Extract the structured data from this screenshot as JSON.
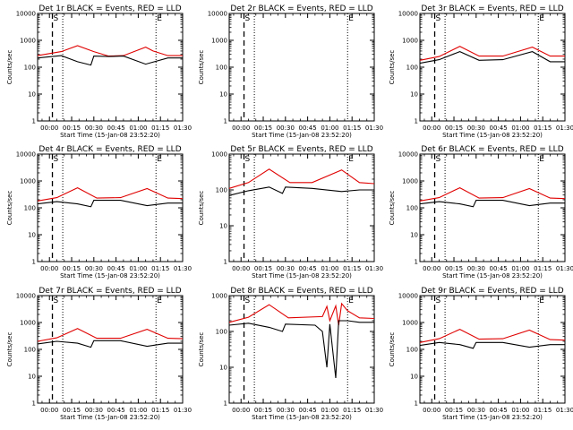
{
  "colors": {
    "events": "#000000",
    "lld": "#e00000",
    "background": "#ffffff"
  },
  "chart_data": [
    {
      "type": "line",
      "title": "Det 1r BLACK = Events, RED = LLD",
      "xlabel": "Start Time (15-Jan-08 23:52:20)",
      "ylabel": "Counts/sec",
      "y_scale": "log",
      "ylim": [
        1,
        10000
      ],
      "x_ticks": [
        "00:00",
        "00:15",
        "00:30",
        "00:45",
        "01:00",
        "01:15",
        "01:30"
      ],
      "y_ticks": [
        "1",
        "10",
        "100",
        "1000",
        "10000"
      ],
      "markers": [
        {
          "label": "S",
          "style": "dashed",
          "x": "00:02"
        },
        {
          "label": "",
          "style": "dotted",
          "x": "00:09"
        },
        {
          "label": "E",
          "style": "dotted",
          "x": "01:12"
        }
      ],
      "series": [
        {
          "color": "red",
          "points": [
            [
              "23:52",
              270
            ],
            [
              "00:08",
              380
            ],
            [
              "00:19",
              630
            ],
            [
              "00:30",
              380
            ],
            [
              "00:40",
              260
            ],
            [
              "00:50",
              270
            ],
            [
              "01:05",
              560
            ],
            [
              "01:10",
              400
            ],
            [
              "01:20",
              270
            ],
            [
              "01:30",
              270
            ]
          ]
        },
        {
          "color": "black",
          "points": [
            [
              "23:52",
              220
            ],
            [
              "00:08",
              270
            ],
            [
              "00:19",
              160
            ],
            [
              "00:28",
              120
            ],
            [
              "00:30",
              260
            ],
            [
              "00:40",
              250
            ],
            [
              "00:50",
              260
            ],
            [
              "01:05",
              130
            ],
            [
              "01:20",
              220
            ],
            [
              "01:30",
              220
            ]
          ]
        }
      ]
    },
    {
      "type": "line",
      "title": "Det 2r BLACK = Events, RED = LLD",
      "xlabel": "Start Time (15-Jan-08 23:52:20)",
      "ylabel": "Counts/sec",
      "y_scale": "log",
      "ylim": [
        1,
        10000
      ],
      "x_ticks": [
        "00:00",
        "00:15",
        "00:30",
        "00:45",
        "01:00",
        "01:15",
        "01:30"
      ],
      "y_ticks": [
        "1",
        "10",
        "100",
        "1000",
        "10000"
      ],
      "markers": [
        {
          "label": "S",
          "style": "dashed",
          "x": "00:02"
        },
        {
          "label": "",
          "style": "dotted",
          "x": "00:09"
        },
        {
          "label": "E",
          "style": "dotted",
          "x": "01:12"
        }
      ],
      "series": []
    },
    {
      "type": "line",
      "title": "Det 3r BLACK = Events, RED = LLD",
      "xlabel": "Start Time (15-Jan-08 23:52:20)",
      "ylabel": "Counts/sec",
      "y_scale": "log",
      "ylim": [
        1,
        10000
      ],
      "x_ticks": [
        "00:00",
        "00:15",
        "00:30",
        "00:45",
        "01:00",
        "01:15",
        "01:30"
      ],
      "y_ticks": [
        "1",
        "10",
        "100",
        "1000",
        "10000"
      ],
      "markers": [
        {
          "label": "S",
          "style": "dashed",
          "x": "00:02"
        },
        {
          "label": "",
          "style": "dotted",
          "x": "00:09"
        },
        {
          "label": "E",
          "style": "dotted",
          "x": "01:12"
        }
      ],
      "series": [
        {
          "color": "red",
          "points": [
            [
              "23:52",
              180
            ],
            [
              "00:05",
              250
            ],
            [
              "00:19",
              600
            ],
            [
              "00:32",
              260
            ],
            [
              "00:48",
              260
            ],
            [
              "01:08",
              560
            ],
            [
              "01:20",
              260
            ],
            [
              "01:30",
              260
            ]
          ]
        },
        {
          "color": "black",
          "points": [
            [
              "23:52",
              140
            ],
            [
              "00:05",
              190
            ],
            [
              "00:19",
              380
            ],
            [
              "00:32",
              180
            ],
            [
              "00:48",
              190
            ],
            [
              "01:08",
              380
            ],
            [
              "01:20",
              160
            ],
            [
              "01:30",
              160
            ]
          ]
        }
      ]
    },
    {
      "type": "line",
      "title": "Det 4r BLACK = Events, RED = LLD",
      "xlabel": "Start Time (15-Jan-08 23:52:20)",
      "ylabel": "Counts/sec",
      "y_scale": "log",
      "ylim": [
        1,
        10000
      ],
      "x_ticks": [
        "00:00",
        "00:15",
        "00:30",
        "00:45",
        "01:00",
        "01:15",
        "01:30"
      ],
      "y_ticks": [
        "1",
        "10",
        "100",
        "1000",
        "10000"
      ],
      "markers": [
        {
          "label": "S",
          "style": "dashed",
          "x": "00:02"
        },
        {
          "label": "",
          "style": "dotted",
          "x": "00:09"
        },
        {
          "label": "E",
          "style": "dotted",
          "x": "01:12"
        }
      ],
      "series": [
        {
          "color": "red",
          "points": [
            [
              "23:52",
              180
            ],
            [
              "00:05",
              240
            ],
            [
              "00:19",
              560
            ],
            [
              "00:32",
              230
            ],
            [
              "00:48",
              240
            ],
            [
              "01:06",
              520
            ],
            [
              "01:20",
              230
            ],
            [
              "01:30",
              220
            ]
          ]
        },
        {
          "color": "black",
          "points": [
            [
              "23:52",
              140
            ],
            [
              "00:05",
              170
            ],
            [
              "00:19",
              140
            ],
            [
              "00:28",
              110
            ],
            [
              "00:30",
              190
            ],
            [
              "00:48",
              190
            ],
            [
              "01:06",
              120
            ],
            [
              "01:20",
              150
            ],
            [
              "01:30",
              150
            ]
          ]
        }
      ]
    },
    {
      "type": "line",
      "title": "Det 5r BLACK = Events, RED = LLD",
      "xlabel": "Start Time (15-Jan-08 23:52:20)",
      "ylabel": "Counts/sec",
      "y_scale": "log",
      "ylim": [
        1,
        1000
      ],
      "x_ticks": [
        "00:00",
        "00:15",
        "00:30",
        "00:45",
        "01:00",
        "01:15",
        "01:30"
      ],
      "y_ticks": [
        "1",
        "10",
        "100",
        "1000"
      ],
      "markers": [
        {
          "label": "S",
          "style": "dashed",
          "x": "00:02"
        },
        {
          "label": "",
          "style": "dotted",
          "x": "00:09"
        },
        {
          "label": "E",
          "style": "dotted",
          "x": "01:12"
        }
      ],
      "series": [
        {
          "color": "red",
          "points": [
            [
              "23:52",
              110
            ],
            [
              "00:05",
              160
            ],
            [
              "00:19",
              380
            ],
            [
              "00:33",
              160
            ],
            [
              "00:48",
              160
            ],
            [
              "01:08",
              360
            ],
            [
              "01:20",
              160
            ],
            [
              "01:30",
              150
            ]
          ]
        },
        {
          "color": "black",
          "points": [
            [
              "23:52",
              70
            ],
            [
              "00:05",
              95
            ],
            [
              "00:19",
              120
            ],
            [
              "00:28",
              80
            ],
            [
              "00:30",
              120
            ],
            [
              "00:48",
              110
            ],
            [
              "01:08",
              90
            ],
            [
              "01:20",
              100
            ],
            [
              "01:30",
              100
            ]
          ]
        }
      ]
    },
    {
      "type": "line",
      "title": "Det 6r BLACK = Events, RED = LLD",
      "xlabel": "Start Time (15-Jan-08 23:52:20)",
      "ylabel": "Counts/sec",
      "y_scale": "log",
      "ylim": [
        1,
        10000
      ],
      "x_ticks": [
        "00:00",
        "00:15",
        "00:30",
        "00:45",
        "01:00",
        "01:15",
        "01:30"
      ],
      "y_ticks": [
        "1",
        "10",
        "100",
        "1000",
        "10000"
      ],
      "markers": [
        {
          "label": "S",
          "style": "dashed",
          "x": "00:02"
        },
        {
          "label": "",
          "style": "dotted",
          "x": "00:09"
        },
        {
          "label": "E",
          "style": "dotted",
          "x": "01:12"
        }
      ],
      "series": [
        {
          "color": "red",
          "points": [
            [
              "23:52",
              180
            ],
            [
              "00:05",
              240
            ],
            [
              "00:19",
              560
            ],
            [
              "00:32",
              230
            ],
            [
              "00:48",
              240
            ],
            [
              "01:06",
              520
            ],
            [
              "01:20",
              230
            ],
            [
              "01:30",
              220
            ]
          ]
        },
        {
          "color": "black",
          "points": [
            [
              "23:52",
              140
            ],
            [
              "00:05",
              170
            ],
            [
              "00:19",
              140
            ],
            [
              "00:28",
              110
            ],
            [
              "00:30",
              190
            ],
            [
              "00:48",
              190
            ],
            [
              "01:06",
              120
            ],
            [
              "01:20",
              150
            ],
            [
              "01:30",
              150
            ]
          ]
        }
      ]
    },
    {
      "type": "line",
      "title": "Det 7r BLACK = Events, RED = LLD",
      "xlabel": "Start Time (15-Jan-08 23:52:20)",
      "ylabel": "Counts/sec",
      "y_scale": "log",
      "ylim": [
        1,
        10000
      ],
      "x_ticks": [
        "00:00",
        "00:15",
        "00:30",
        "00:45",
        "01:00",
        "01:15",
        "01:30"
      ],
      "y_ticks": [
        "1",
        "10",
        "100",
        "1000",
        "10000"
      ],
      "markers": [
        {
          "label": "S",
          "style": "dashed",
          "x": "00:02"
        },
        {
          "label": "",
          "style": "dotted",
          "x": "00:09"
        },
        {
          "label": "E",
          "style": "dotted",
          "x": "01:12"
        }
      ],
      "series": [
        {
          "color": "red",
          "points": [
            [
              "23:52",
              200
            ],
            [
              "00:05",
              270
            ],
            [
              "00:19",
              600
            ],
            [
              "00:32",
              260
            ],
            [
              "00:48",
              260
            ],
            [
              "01:06",
              560
            ],
            [
              "01:20",
              260
            ],
            [
              "01:30",
              250
            ]
          ]
        },
        {
          "color": "black",
          "points": [
            [
              "23:52",
              160
            ],
            [
              "00:05",
              200
            ],
            [
              "00:19",
              170
            ],
            [
              "00:28",
              120
            ],
            [
              "00:30",
              210
            ],
            [
              "00:48",
              210
            ],
            [
              "01:06",
              130
            ],
            [
              "01:20",
              170
            ],
            [
              "01:30",
              170
            ]
          ]
        }
      ]
    },
    {
      "type": "line",
      "title": "Det 8r BLACK = Events, RED = LLD",
      "xlabel": "Start Time (15-Jan-08 23:52:20)",
      "ylabel": "Counts/sec",
      "y_scale": "log",
      "ylim": [
        1,
        1000
      ],
      "x_ticks": [
        "00:00",
        "00:15",
        "00:30",
        "00:45",
        "01:00",
        "01:15",
        "01:30"
      ],
      "y_ticks": [
        "1",
        "10",
        "100",
        "1000"
      ],
      "markers": [
        {
          "label": "S",
          "style": "dashed",
          "x": "00:02"
        },
        {
          "label": "",
          "style": "dotted",
          "x": "00:09"
        },
        {
          "label": "E",
          "style": "dotted",
          "x": "01:12"
        }
      ],
      "series": [
        {
          "color": "red",
          "points": [
            [
              "23:52",
              180
            ],
            [
              "00:05",
              250
            ],
            [
              "00:19",
              560
            ],
            [
              "00:32",
              240
            ],
            [
              "00:55",
              260
            ],
            [
              "00:58",
              500
            ],
            [
              "01:00",
              200
            ],
            [
              "01:04",
              520
            ],
            [
              "01:06",
              150
            ],
            [
              "01:08",
              600
            ],
            [
              "01:12",
              380
            ],
            [
              "01:20",
              240
            ],
            [
              "01:30",
              230
            ]
          ]
        },
        {
          "color": "black",
          "points": [
            [
              "23:52",
              150
            ],
            [
              "00:05",
              170
            ],
            [
              "00:19",
              130
            ],
            [
              "00:28",
              100
            ],
            [
              "00:30",
              160
            ],
            [
              "00:50",
              150
            ],
            [
              "00:55",
              100
            ],
            [
              "00:58",
              10
            ],
            [
              "01:00",
              160
            ],
            [
              "01:04",
              5
            ],
            [
              "01:06",
              200
            ],
            [
              "01:12",
              200
            ],
            [
              "01:20",
              180
            ],
            [
              "01:30",
              180
            ]
          ]
        }
      ]
    },
    {
      "type": "line",
      "title": "Det 9r BLACK = Events, RED = LLD",
      "xlabel": "Start Time (15-Jan-08 23:52:20)",
      "ylabel": "Counts/sec",
      "y_scale": "log",
      "ylim": [
        1,
        10000
      ],
      "x_ticks": [
        "00:00",
        "00:15",
        "00:30",
        "00:45",
        "01:00",
        "01:15",
        "01:30"
      ],
      "y_ticks": [
        "1",
        "10",
        "100",
        "1000",
        "10000"
      ],
      "markers": [
        {
          "label": "S",
          "style": "dashed",
          "x": "00:02"
        },
        {
          "label": "",
          "style": "dotted",
          "x": "00:09"
        },
        {
          "label": "E",
          "style": "dotted",
          "x": "01:12"
        }
      ],
      "series": [
        {
          "color": "red",
          "points": [
            [
              "23:52",
              180
            ],
            [
              "00:05",
              250
            ],
            [
              "00:19",
              560
            ],
            [
              "00:32",
              240
            ],
            [
              "00:48",
              250
            ],
            [
              "01:06",
              520
            ],
            [
              "01:20",
              230
            ],
            [
              "01:30",
              220
            ]
          ]
        },
        {
          "color": "black",
          "points": [
            [
              "23:52",
              140
            ],
            [
              "00:05",
              180
            ],
            [
              "00:19",
              150
            ],
            [
              "00:28",
              110
            ],
            [
              "00:30",
              180
            ],
            [
              "00:48",
              180
            ],
            [
              "01:06",
              120
            ],
            [
              "01:20",
              150
            ],
            [
              "01:30",
              150
            ]
          ]
        }
      ]
    }
  ]
}
